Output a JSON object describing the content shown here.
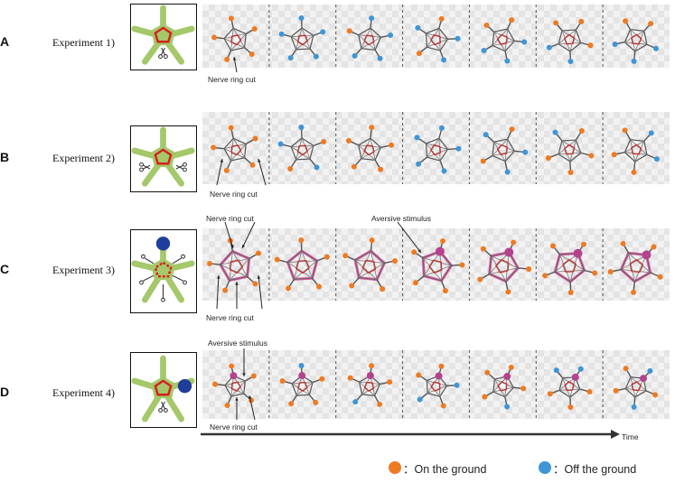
{
  "rows": [
    {
      "letter": "A",
      "label": "Experiment 1)",
      "annotations": [
        "Nerve ring cut"
      ]
    },
    {
      "letter": "B",
      "label": "Experiment 2)",
      "annotations": [
        "Nerve ring cut"
      ]
    },
    {
      "letter": "C",
      "label": "Experiment 3)",
      "annotations": [
        "Nerve ring cut",
        "Aversive stimulus",
        "Nerve ring cut"
      ]
    },
    {
      "letter": "D",
      "label": "Experiment 4)",
      "annotations": [
        "Aversive stimulus",
        "Nerve ring cut"
      ]
    }
  ],
  "time_label": "Time",
  "legend": [
    {
      "text": "：On the ground",
      "color": "#ee7a22"
    },
    {
      "text": "：Off the ground",
      "color": "#3f95d6"
    }
  ],
  "colors": {
    "on_ground": "#ee7a22",
    "off_ground": "#3f95d6",
    "nerve_ring": "#d81e1e",
    "body": "#a4c86a",
    "stimulus": "#1f3d9a",
    "pink_ring": "#e95aa8",
    "stim_node": "#b5428e"
  }
}
